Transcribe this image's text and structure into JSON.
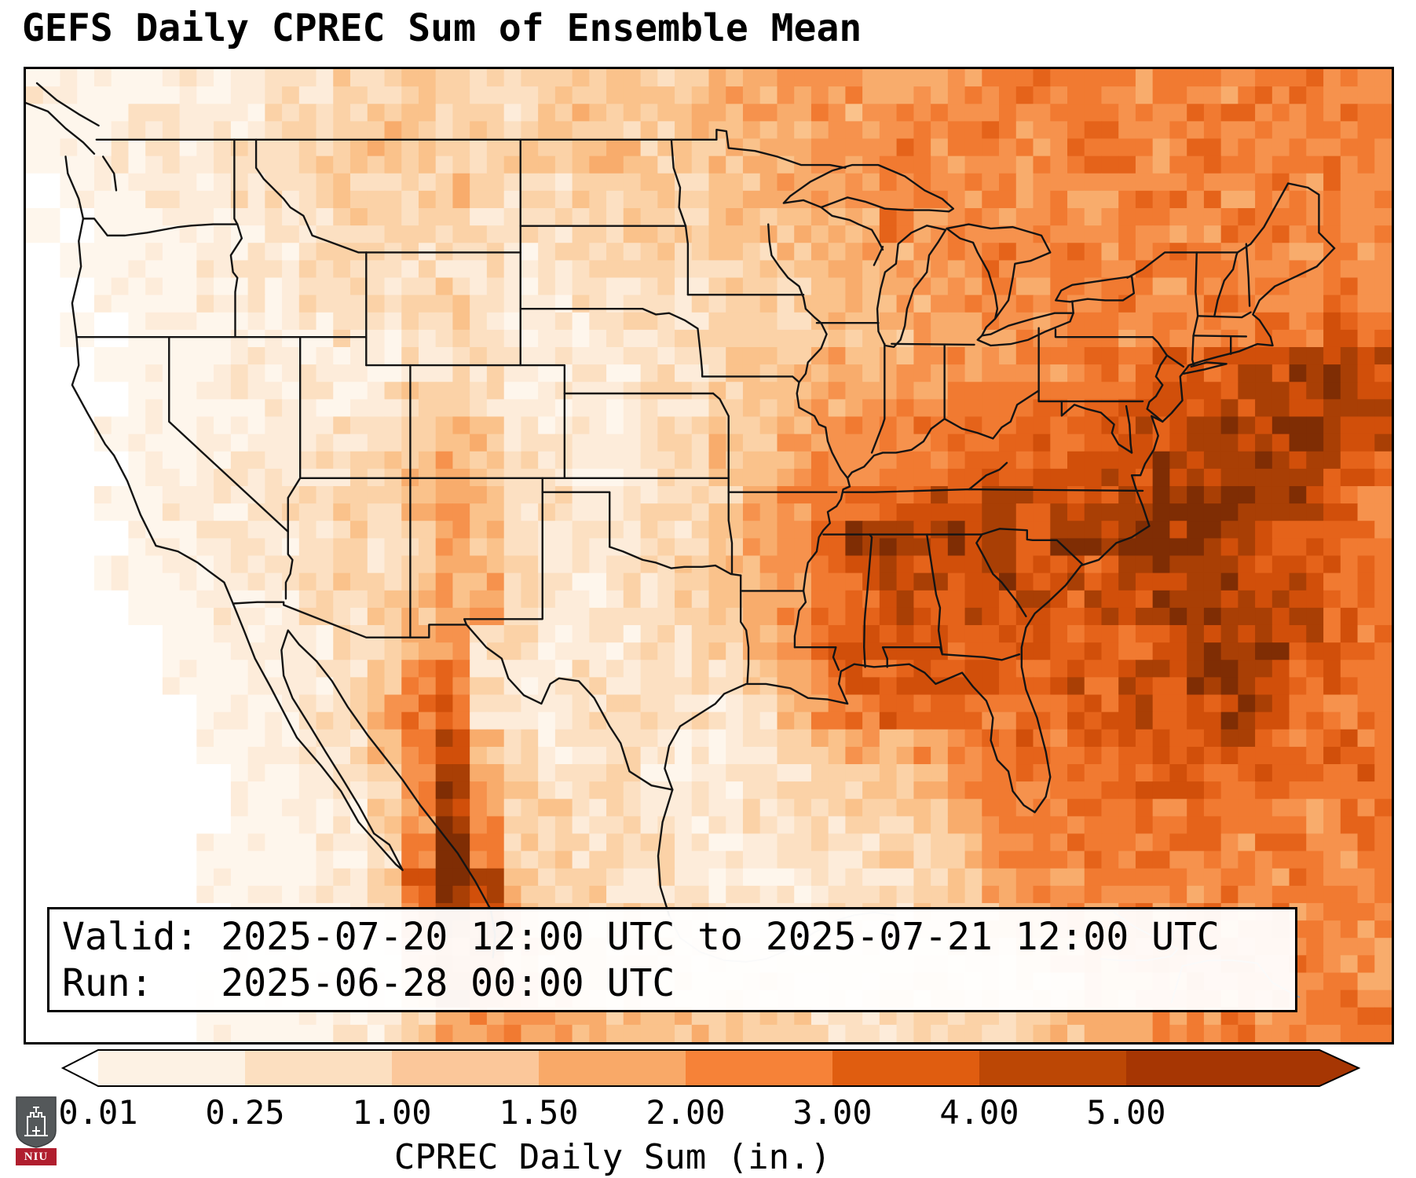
{
  "title": "GEFS Daily CPREC Sum of Ensemble Mean",
  "info_box": {
    "valid_line": "Valid: 2025-07-20 12:00 UTC to 2025-07-21 12:00 UTC",
    "run_line": "Run:   2025-06-28 00:00 UTC"
  },
  "colorbar": {
    "label": "CPREC Daily Sum (in.)",
    "ticks": [
      "0.01",
      "0.25",
      "1.00",
      "1.50",
      "2.00",
      "3.00",
      "4.00",
      "5.00"
    ],
    "segment_colors": [
      "#fdf2e4",
      "#fcdfc0",
      "#fbc79a",
      "#f9a968",
      "#f68238",
      "#e05d10",
      "#bc4705"
    ],
    "under_color": "#ffffff",
    "over_color": "#a63603",
    "outline_color": "#000000"
  },
  "logo": {
    "text": "NIU",
    "red": "#b01e2e",
    "gray": "#54585a"
  },
  "chart_data": {
    "type": "heatmap",
    "title": "GEFS Daily CPREC Sum of Ensemble Mean",
    "variable": "CPREC Daily Sum",
    "units": "in.",
    "valid": "2025-07-20 12:00 UTC to 2025-07-21 12:00 UTC",
    "run": "2025-06-28 00:00 UTC",
    "legend_levels_in": [
      0.01,
      0.25,
      1.0,
      1.5,
      2.0,
      3.0,
      4.0,
      5.0
    ],
    "extent": {
      "lon_min": -126.5,
      "lon_max": -64.5,
      "lat_min": 17.0,
      "lat_max": 51.5
    },
    "palette": [
      "#ffffff",
      "#fef6ec",
      "#fdecda",
      "#fce0c2",
      "#fbd2a7",
      "#fac28b",
      "#f8ac6c",
      "#f6924d",
      "#f17a31",
      "#e5631a",
      "#d14f0a",
      "#a93f05",
      "#7f2d04"
    ],
    "grid_note": "40x28 coarse field, chars 0-9/a/b/c index the palette; 0=<0.01in, 4~0.5in, 7~1.5in, 9~2.5in, b~4in, c=>5in",
    "grid_rows": [
      "2111222324454334454566777677888778878877",
      "1112232344554434544556676778878878887788",
      "1122223344554444554556677877778887877888",
      "0112223334445433445455667787877788878787",
      "1011222334444333444455566878777787788778",
      "0111122234333323444344556677878788877787",
      "0011122233334322333344455667778887888787",
      "0101112223234322233344455566777878889899",
      "00111122222333222233455666777778899aabba",
      "000111222234432222334556677888899aaabbba",
      "00111222233455322233556677889999aabbbcba",
      "0001122233456432223355677889999aabbbcba9",
      "00112223344565332233467899aabaaabcccbb98",
      "000112223434653322335679bcbbbabbcbcba998",
      "0011122334346643233456789aaabaa9bbbbaa99",
      "0001122233456632233456789a9aaa9aabbbaa98",
      "0000112223467332223346799aa9999a9abbba98",
      "0000112223578322333334689999a9a9aabba998",
      "00000122336893223333235789998899a9aba988",
      "000001122358a53223322345657889899a9a9898",
      "000000112247b64333222334455788889a989889",
      "000000112247b744332223334456888898988788",
      "000001112238c844333222333445788988878878",
      "000001112249cb54433222233344677888787878",
      "000000111238ba64443322233344567787878787",
      "0000001111279965544333233344456778787877",
      "000001111125a976544444333444445667878787",
      "0000011112246777655544433344445567787878"
    ]
  }
}
